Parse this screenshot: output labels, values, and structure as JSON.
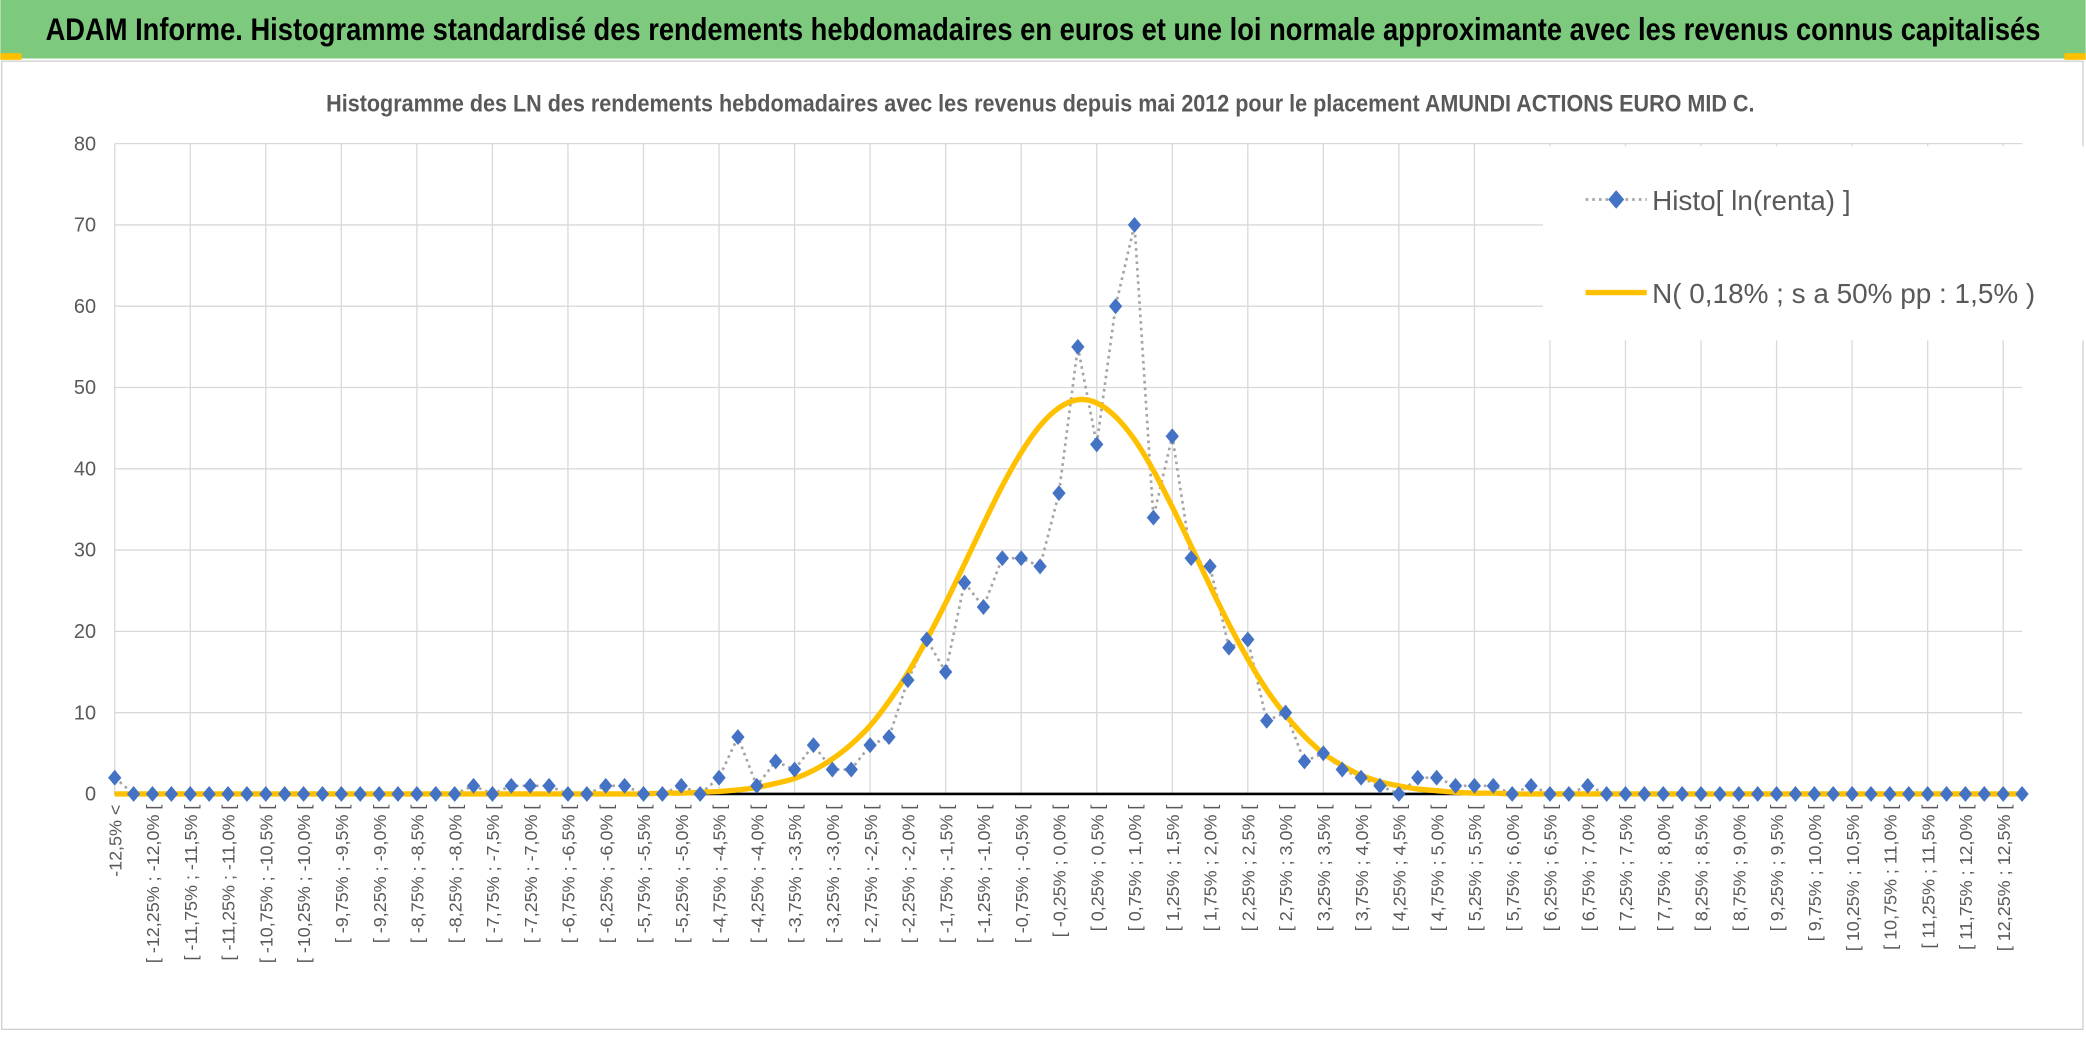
{
  "header": {
    "title": "ADAM Informe. Histogramme standardisé des rendements hebdomadaires en euros et une loi normale approximante avec les revenus connus capitalisés"
  },
  "chart_data": {
    "type": "line",
    "title": "Histogramme des LN des rendements hebdomadaires avec les revenus depuis mai 2012 pour le placement AMUNDI ACTIONS EURO MID C.",
    "categories": [
      "-12,5% <",
      null,
      "[ -12,25% ; -12,0% [",
      null,
      "[ -11,75% ; -11,5% [",
      null,
      "[ -11,25% ; -11,0% [",
      null,
      "[ -10,75% ; -10,5% [",
      null,
      "[ -10,25% ; -10,0% [",
      null,
      "[ -9,75% ; -9,5% [",
      null,
      "[ -9,25% ; -9,0% [",
      null,
      "[ -8,75% ; -8,5% [",
      null,
      "[ -8,25% ; -8,0% [",
      null,
      "[ -7,75% ; -7,5% [",
      null,
      "[ -7,25% ; -7,0% [",
      null,
      "[ -6,75% ; -6,5% [",
      null,
      "[ -6,25% ; -6,0% [",
      null,
      "[ -5,75% ; -5,5% [",
      null,
      "[ -5,25% ; -5,0% [",
      null,
      "[ -4,75% ; -4,5% [",
      null,
      "[ -4,25% ; -4,0% [",
      null,
      "[ -3,75% ; -3,5% [",
      null,
      "[ -3,25% ; -3,0% [",
      null,
      "[ -2,75% ; -2,5% [",
      null,
      "[ -2,25% ; -2,0% [",
      null,
      "[ -1,75% ; -1,5% [",
      null,
      "[ -1,25% ; -1,0% [",
      null,
      "[ -0,75% ; -0,5% [",
      null,
      "[ -0,25% ; 0,0% [",
      null,
      "[ 0,25% ; 0,5% [",
      null,
      "[ 0,75% ; 1,0% [",
      null,
      "[ 1,25% ; 1,5% [",
      null,
      "[ 1,75% ; 2,0% [",
      null,
      "[ 2,25% ; 2,5% [",
      null,
      "[ 2,75% ; 3,0% [",
      null,
      "[ 3,25% ; 3,5% [",
      null,
      "[ 3,75% ; 4,0% [",
      null,
      "[ 4,25% ; 4,5% [",
      null,
      "[ 4,75% ; 5,0% [",
      null,
      "[ 5,25% ; 5,5% [",
      null,
      "[ 5,75% ; 6,0% [",
      null,
      "[ 6,25% ; 6,5% [",
      null,
      "[ 6,75% ; 7,0% [",
      null,
      "[ 7,25% ; 7,5% [",
      null,
      "[ 7,75% ; 8,0% [",
      null,
      "[ 8,25% ; 8,5% [",
      null,
      "[ 8,75% ; 9,0% [",
      null,
      "[ 9,25% ; 9,5% [",
      null,
      "[ 9,75% ; 10,0% [",
      null,
      "[ 10,25% ; 10,5% [",
      null,
      "[ 10,75% ; 11,0% [",
      null,
      "[ 11,25% ; 11,5% [",
      null,
      "[ 11,75% ; 12,0% [",
      null,
      "[ 12,25% ; 12,5% [",
      null
    ],
    "series": [
      {
        "name": "Histo[ ln(renta) ]",
        "color": "#4472c4",
        "style": "dotted-markers",
        "values": [
          2,
          0,
          0,
          0,
          0,
          0,
          0,
          0,
          0,
          0,
          0,
          0,
          0,
          0,
          0,
          0,
          0,
          0,
          0,
          1,
          0,
          1,
          1,
          1,
          0,
          0,
          1,
          1,
          0,
          0,
          1,
          0,
          2,
          7,
          1,
          4,
          3,
          6,
          3,
          3,
          6,
          7,
          14,
          19,
          15,
          26,
          23,
          29,
          29,
          28,
          37,
          55,
          43,
          60,
          70,
          34,
          44,
          29,
          28,
          18,
          19,
          9,
          10,
          4,
          5,
          3,
          2,
          1,
          0,
          2,
          2,
          1,
          1,
          1,
          0,
          1,
          0,
          0,
          1,
          0,
          0,
          0,
          0,
          0,
          0,
          0,
          0,
          0,
          0,
          0,
          0,
          0,
          0,
          0,
          0,
          0,
          0,
          0,
          0,
          0,
          0,
          0
        ]
      },
      {
        "name": "N( 0,18% ; s a 50% pp : 1,5% )",
        "color": "#ffc000",
        "style": "smooth",
        "values": [
          0,
          0,
          0,
          0,
          0,
          0,
          0,
          0,
          0,
          0,
          0,
          0,
          0,
          0,
          0,
          0,
          0,
          0,
          0,
          0,
          0,
          0,
          0,
          0,
          0,
          0,
          0,
          0,
          0,
          0.1,
          0.1,
          0.2,
          0.3,
          0.5,
          0.8,
          1.3,
          1.9,
          2.9,
          4.3,
          6.1,
          8.4,
          11.4,
          14.9,
          19.0,
          23.5,
          28.3,
          33.2,
          37.9,
          42.0,
          45.3,
          47.5,
          48.5,
          48.1,
          46.4,
          43.6,
          39.8,
          35.3,
          30.5,
          25.6,
          20.9,
          16.6,
          12.8,
          9.7,
          7.1,
          5.0,
          3.5,
          2.3,
          1.5,
          1.0,
          0.6,
          0.4,
          0.2,
          0.1,
          0.1,
          0,
          0,
          0,
          0,
          0,
          0,
          0,
          0,
          0,
          0,
          0,
          0,
          0,
          0,
          0,
          0,
          0,
          0,
          0,
          0,
          0,
          0,
          0,
          0,
          0,
          0,
          0,
          0
        ]
      }
    ],
    "ylim": [
      0,
      80
    ],
    "yticks": [
      0,
      10,
      20,
      30,
      40,
      50,
      60,
      70,
      80
    ],
    "grid": true,
    "legend": "top-right"
  }
}
